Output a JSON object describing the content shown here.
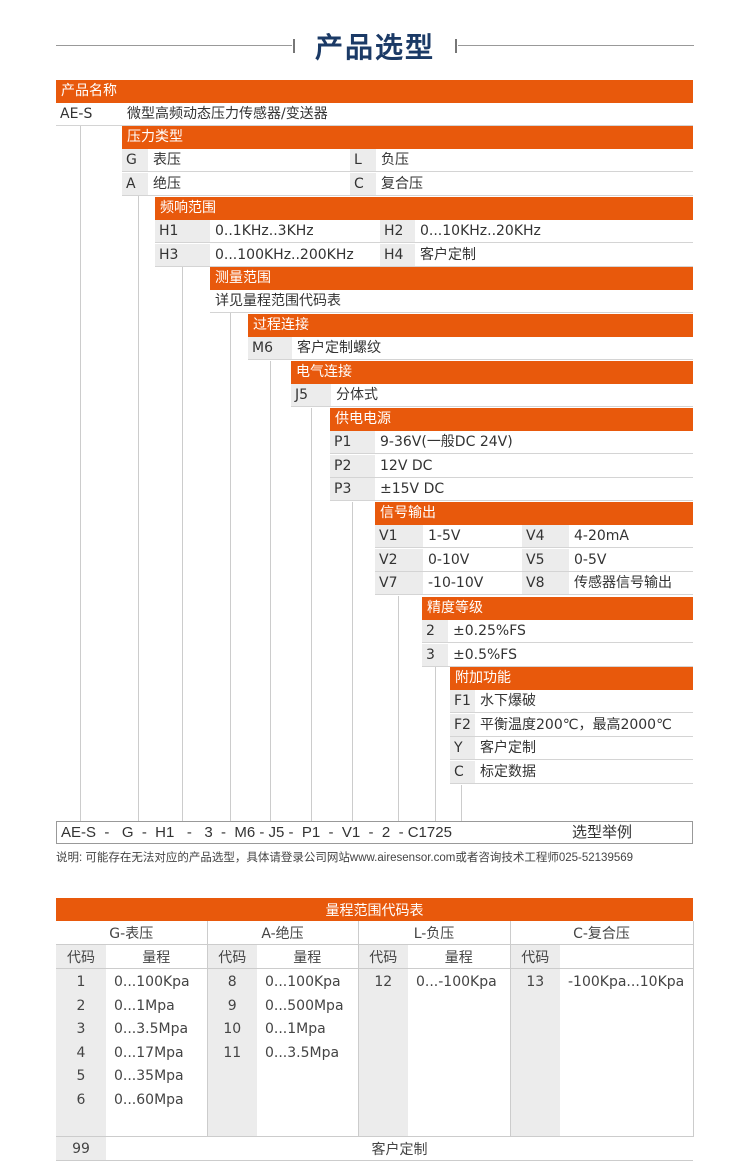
{
  "title": "产品选型",
  "colors": {
    "accent": "#e8590c",
    "title": "#1b3a66",
    "code_bg": "#ececec"
  },
  "sections": [
    {
      "header": "产品名称",
      "rows": [
        [
          {
            "code": "AE-S",
            "desc": "微型高频动态压力传感器/变送器"
          }
        ]
      ]
    },
    {
      "header": "压力类型",
      "rows": [
        [
          {
            "code": "G",
            "desc": "表压"
          },
          {
            "code": "L",
            "desc": "负压"
          }
        ],
        [
          {
            "code": "A",
            "desc": "绝压"
          },
          {
            "code": "C",
            "desc": "复合压"
          }
        ]
      ]
    },
    {
      "header": "频响范围",
      "rows": [
        [
          {
            "code": "H1",
            "desc": "0..1KHz..3KHz"
          },
          {
            "code": "H2",
            "desc": "0...10KHz..20KHz"
          }
        ],
        [
          {
            "code": "H3",
            "desc": "0...100KHz..200KHz"
          },
          {
            "code": "H4",
            "desc": "客户定制"
          }
        ]
      ]
    },
    {
      "header": "测量范围",
      "rows": [
        [
          {
            "code": "",
            "desc": "详见量程范围代码表"
          }
        ]
      ]
    },
    {
      "header": "过程连接",
      "rows": [
        [
          {
            "code": "M6",
            "desc": "客户定制螺纹"
          }
        ]
      ]
    },
    {
      "header": "电气连接",
      "rows": [
        [
          {
            "code": "J5",
            "desc": "分体式"
          }
        ]
      ]
    },
    {
      "header": "供电电源",
      "rows": [
        [
          {
            "code": "P1",
            "desc": "9-36V(一般DC 24V)"
          }
        ],
        [
          {
            "code": "P2",
            "desc": "12V DC"
          }
        ],
        [
          {
            "code": "P3",
            "desc": "±15V DC"
          }
        ]
      ]
    },
    {
      "header": "信号输出",
      "rows": [
        [
          {
            "code": "V1",
            "desc": "1-5V"
          },
          {
            "code": "V4",
            "desc": "4-20mA"
          }
        ],
        [
          {
            "code": "V2",
            "desc": "0-10V"
          },
          {
            "code": "V5",
            "desc": "0-5V"
          }
        ],
        [
          {
            "code": "V7",
            "desc": "-10-10V"
          },
          {
            "code": "V8",
            "desc": "传感器信号输出"
          }
        ]
      ]
    },
    {
      "header": "精度等级",
      "rows": [
        [
          {
            "code": "2",
            "desc": "±0.25%FS"
          }
        ],
        [
          {
            "code": "3",
            "desc": "±0.5%FS"
          }
        ]
      ]
    },
    {
      "header": "附加功能",
      "rows": [
        [
          {
            "code": "F1",
            "desc": "水下爆破"
          }
        ],
        [
          {
            "code": "F2",
            "desc": "平衡温度200℃，最高2000℃"
          }
        ],
        [
          {
            "code": "Y",
            "desc": "客户定制"
          }
        ],
        [
          {
            "code": "C",
            "desc": "标定数据"
          }
        ]
      ]
    }
  ],
  "example": {
    "code": "AE-S  -   G  -  H1   -   3  -  M6 - J5 -  P1  -  V1  -  2  - C1725",
    "label": "选型举例"
  },
  "note": "说明: 可能存在无法对应的产品选型，具体请登录公司网站www.airesensor.com或者咨询技术工程师025-52139569",
  "range_table": {
    "title": "量程范围代码表",
    "code_header": "代码",
    "range_header": "量程",
    "groups": [
      {
        "name": "G-表压",
        "codes": [
          "1",
          "2",
          "3",
          "4",
          "5",
          "6"
        ],
        "ranges": [
          "0...100Kpa",
          "0...1Mpa",
          "0...3.5Mpa",
          "0...17Mpa",
          "0...35Mpa",
          "0...60Mpa"
        ],
        "show_range_header": true
      },
      {
        "name": "A-绝压",
        "codes": [
          "8",
          "9",
          "10",
          "11"
        ],
        "ranges": [
          "0...100Kpa",
          "0...500Mpa",
          "0...1Mpa",
          "0...3.5Mpa"
        ],
        "show_range_header": true
      },
      {
        "name": "L-负压",
        "codes": [
          "12"
        ],
        "ranges": [
          "0...-100Kpa"
        ],
        "show_range_header": true
      },
      {
        "name": "C-复合压",
        "codes": [
          "13"
        ],
        "ranges": [
          "-100Kpa...10Kpa"
        ],
        "show_range_header": false
      }
    ],
    "custom_code": "99",
    "custom_label": "客户定制"
  }
}
